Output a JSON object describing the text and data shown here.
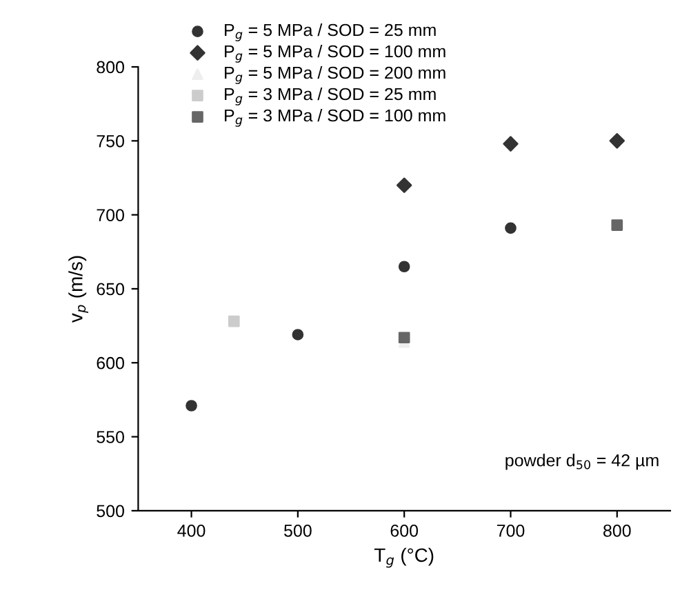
{
  "chart_data": {
    "type": "scatter",
    "xlabel": "T$_{g}$ (°C)",
    "ylabel": "v$_{p}$ (m/s)",
    "xlim": [
      350,
      850
    ],
    "xticks": [
      400,
      500,
      600,
      700,
      800
    ],
    "ylim": [
      500,
      800
    ],
    "yticks": [
      500,
      550,
      600,
      650,
      700,
      750,
      800
    ],
    "grid": false,
    "legend": "top left",
    "series": [
      {
        "name": "P$_{g}$ = 5 MPa / SOD = 25 mm",
        "color": "#333333",
        "marker": "circle",
        "x": [
          400,
          500,
          600,
          700
        ],
        "values": [
          571,
          619,
          665,
          691
        ]
      },
      {
        "name": "P$_{g}$ = 5 MPa / SOD = 100 mm",
        "color": "#333333",
        "marker": "diamond",
        "x": [
          600,
          700,
          800
        ],
        "values": [
          720,
          748,
          750
        ]
      },
      {
        "name": "P$_{g}$ = 5 MPa / SOD = 200 mm",
        "color": "#eeeeee",
        "marker": "triangle",
        "x": [
          600
        ],
        "values": [
          614
        ]
      },
      {
        "name": "P$_{g}$ = 3 MPa / SOD = 25 mm",
        "color": "#cccccc",
        "marker": "square",
        "x": [
          440
        ],
        "values": [
          628
        ]
      },
      {
        "name": "P$_{g}$ = 3 MPa / SOD = 100 mm",
        "color": "#666666",
        "marker": "square",
        "x": [
          600,
          800
        ],
        "values": [
          617,
          693
        ]
      }
    ],
    "annotations": [
      "powder d$_{50}$ = 42 µm"
    ]
  }
}
